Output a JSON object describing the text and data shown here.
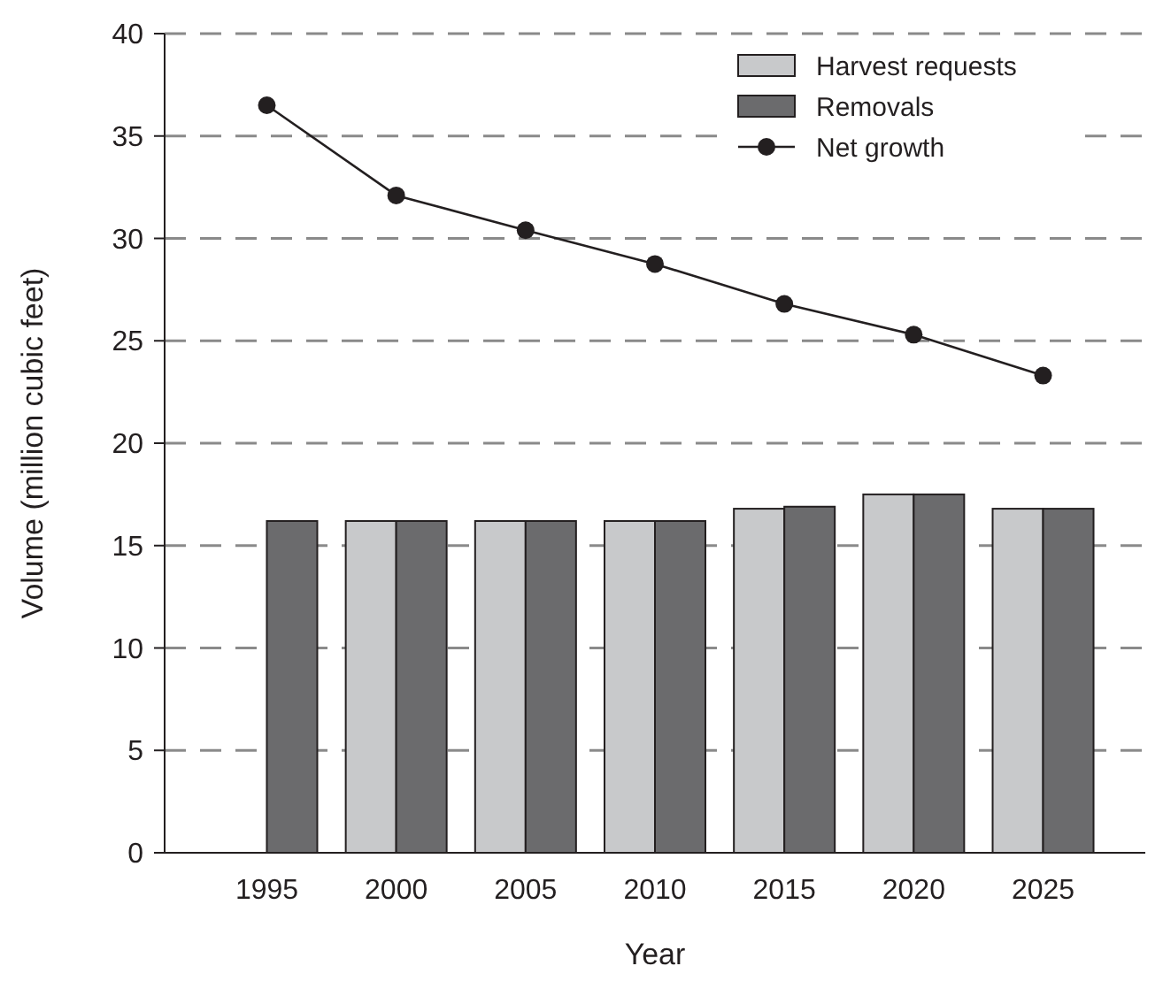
{
  "chart_data": {
    "type": "bar",
    "xlabel": "Year",
    "ylabel": "Volume (million cubic feet)",
    "categories": [
      "1995",
      "2000",
      "2005",
      "2010",
      "2015",
      "2020",
      "2025"
    ],
    "series": [
      {
        "name": "Harvest requests",
        "color": "#c8c9cb",
        "values": [
          null,
          16.2,
          16.2,
          16.2,
          16.8,
          17.5,
          16.8
        ]
      },
      {
        "name": "Removals",
        "color": "#6b6b6d",
        "values": [
          16.2,
          16.2,
          16.2,
          16.2,
          16.9,
          17.5,
          16.8
        ]
      },
      {
        "name": "Net growth",
        "type": "line",
        "color": "#231f20",
        "values": [
          36.5,
          32.1,
          30.4,
          28.75,
          26.8,
          25.3,
          23.3
        ]
      }
    ],
    "ylim": [
      0,
      40
    ],
    "yticks": [
      0,
      5,
      10,
      15,
      20,
      25,
      30,
      35,
      40
    ],
    "grid": "y",
    "legend": "top right",
    "marker": "circle"
  }
}
